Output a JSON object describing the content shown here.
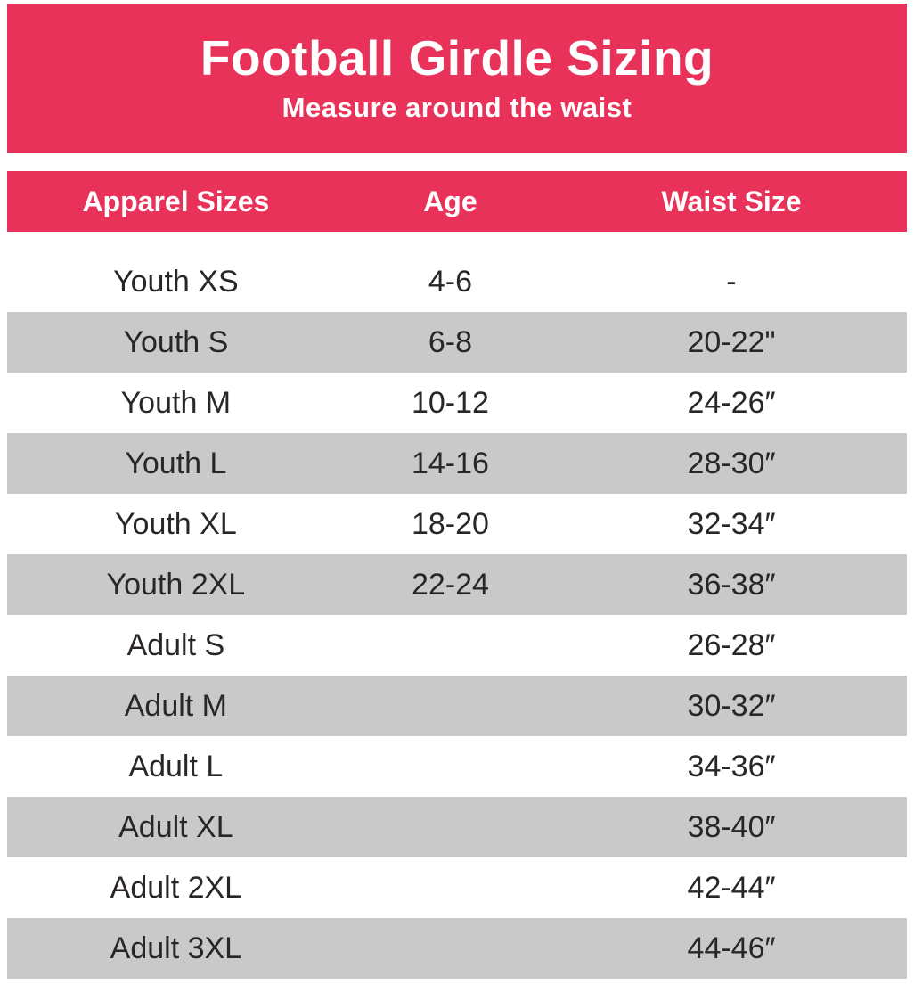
{
  "chart_data": {
    "type": "table",
    "title": "Football Girdle Sizing",
    "subtitle": "Measure around the waist",
    "columns": [
      "Apparel Sizes",
      "Age",
      "Waist Size"
    ],
    "rows": [
      {
        "size": "Youth XS",
        "age": "4-6",
        "waist": "-"
      },
      {
        "size": "Youth S",
        "age": "6-8",
        "waist": "20-22\""
      },
      {
        "size": "Youth M",
        "age": "10-12",
        "waist": "24-26″"
      },
      {
        "size": "Youth L",
        "age": "14-16",
        "waist": "28-30″"
      },
      {
        "size": "Youth XL",
        "age": "18-20",
        "waist": "32-34″"
      },
      {
        "size": "Youth 2XL",
        "age": "22-24",
        "waist": "36-38″"
      },
      {
        "size": "Adult S",
        "age": "",
        "waist": "26-28″"
      },
      {
        "size": "Adult M",
        "age": "",
        "waist": "30-32″"
      },
      {
        "size": "Adult L",
        "age": "",
        "waist": "34-36″"
      },
      {
        "size": "Adult XL",
        "age": "",
        "waist": "38-40″"
      },
      {
        "size": "Adult 2XL",
        "age": "",
        "waist": "42-44″"
      },
      {
        "size": "Adult 3XL",
        "age": "",
        "waist": "44-46″"
      }
    ],
    "layout": {
      "stripe_pattern": "first row white, then alternating gray/white",
      "legend_position": "none",
      "grid": "off"
    }
  },
  "colors": {
    "accent_pink": "#e8325a",
    "row_gray": "#c9c9ca",
    "text_dark": "#2a2627",
    "banner_text": "#ffffff"
  }
}
